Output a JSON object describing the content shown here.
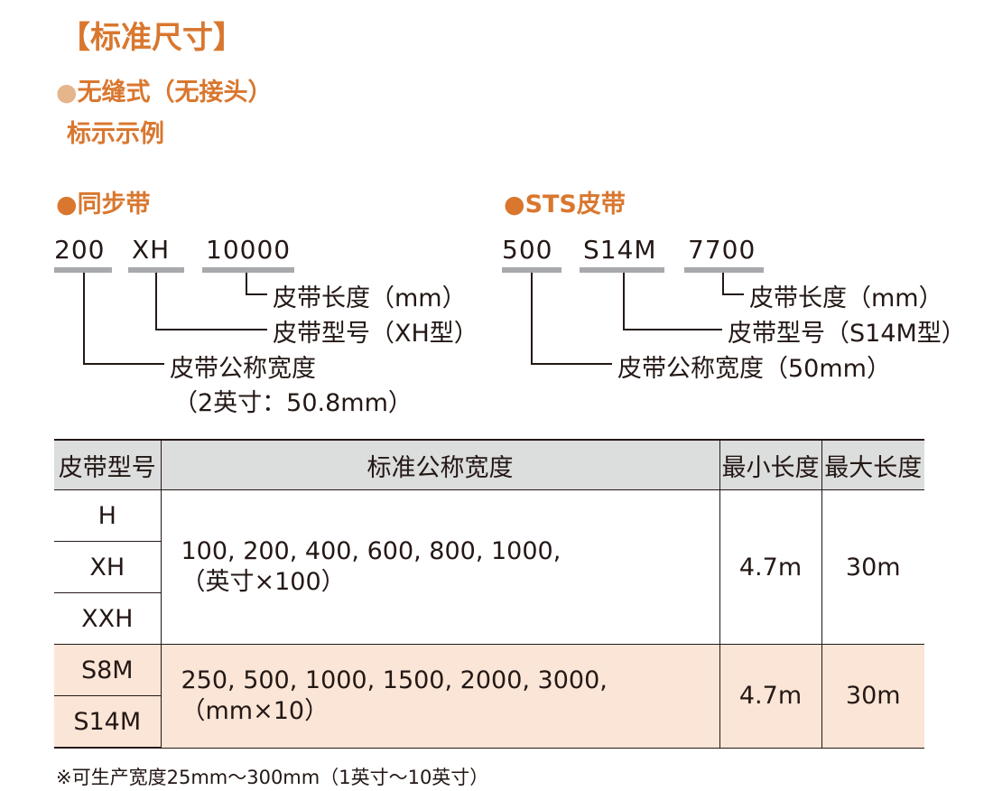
{
  "page": {
    "title": "【标准尺寸】",
    "subtitle": "无缝式（无接头）",
    "subtitle_dot": "●",
    "example_heading": "标示示例"
  },
  "sync_example": {
    "heading": "同步带",
    "dot": "●",
    "code_width": "200",
    "code_type": "XH",
    "code_length": "10000",
    "label_length": "皮带长度（mm）",
    "label_type": "皮带型号（XH型）",
    "label_width": "皮带公称宽度",
    "label_width_note": "（2英寸：50.8mm）"
  },
  "sts_example": {
    "heading": "STS皮带",
    "dot": "●",
    "code_width": "500",
    "code_type": "S14M",
    "code_length": "7700",
    "label_length": "皮带长度（mm）",
    "label_type": "皮带型号（S14M型）",
    "label_width": "皮带公称宽度（50mm）"
  },
  "table": {
    "headers": [
      "皮带型号",
      "标准公称宽度",
      "最小长度",
      "最大长度"
    ],
    "group1": {
      "types": [
        "H",
        "XH",
        "XXH"
      ],
      "widths_line1": "100, 200, 400, 600, 800, 1000,",
      "widths_line2": "（英寸×100）",
      "min_length": "4.7m",
      "max_length": "30m"
    },
    "group2": {
      "types": [
        "S8M",
        "S14M"
      ],
      "widths_line1": "250, 500, 1000, 1500, 2000, 3000,",
      "widths_line2": "（mm×10）",
      "min_length": "4.7m",
      "max_length": "30m"
    }
  },
  "footnote": "※可生产宽度25mm～300mm（1英寸～10英寸）",
  "colors": {
    "accent": "#d9772f",
    "header_bg": "#dcdddd",
    "highlight_bg": "#fbe5d6",
    "code_underline": "#a7a9ac"
  }
}
